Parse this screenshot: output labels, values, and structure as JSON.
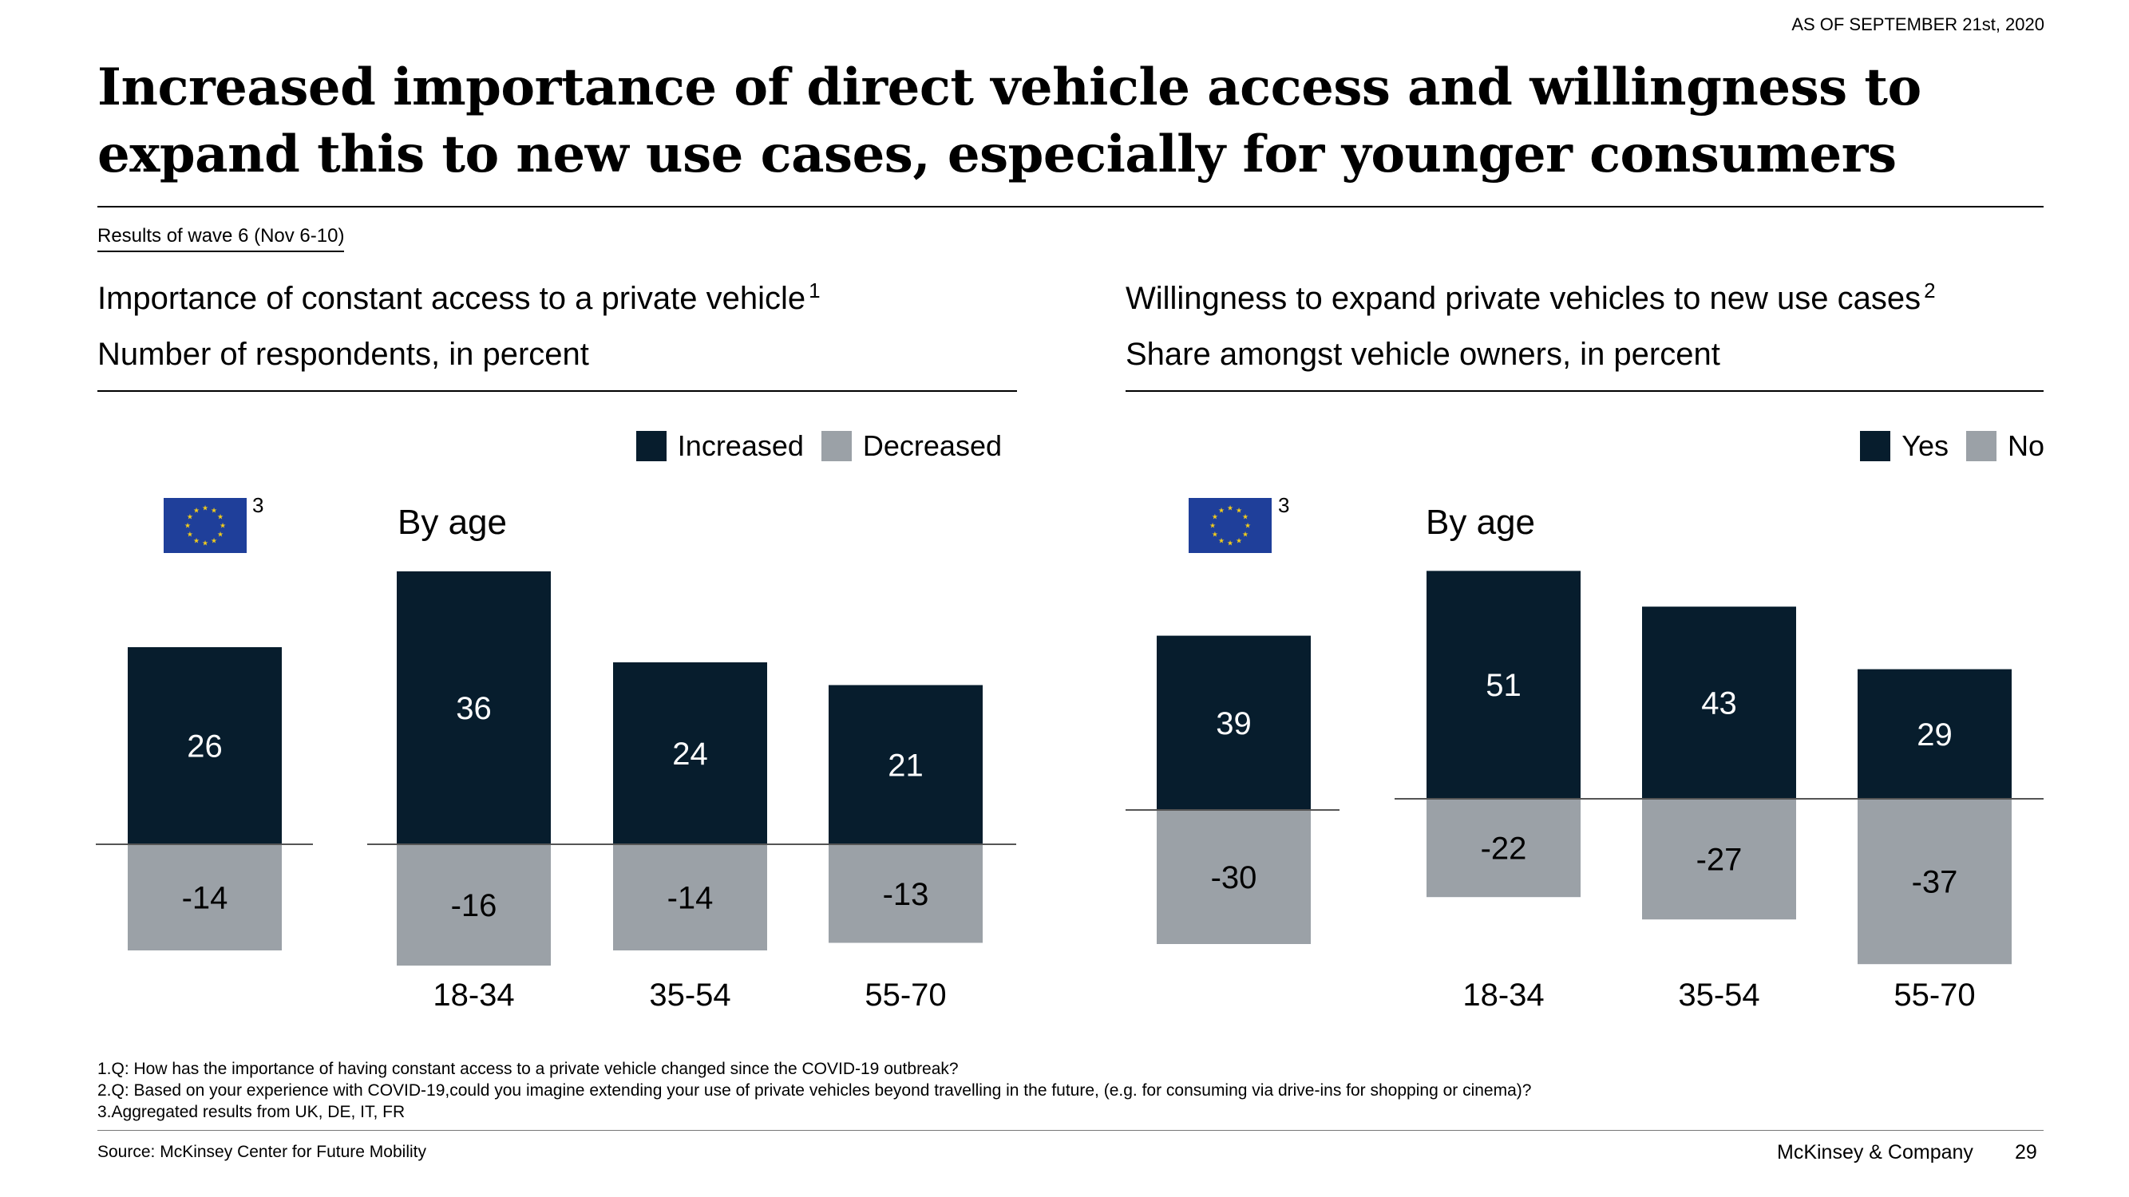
{
  "header": {
    "date_stamp": "AS OF SEPTEMBER 21st, 2020",
    "title_line1": "Increased importance of direct vehicle access and willingness to",
    "title_line2": "expand this to new use cases, especially for younger consumers",
    "wave": "Results of wave 6 (Nov 6-10)"
  },
  "colors": {
    "positive": "#071d2d",
    "negative": "#9ba1a7",
    "flag_blue": "#1f3f9a",
    "flag_star": "#f2cc1b"
  },
  "icons": {
    "flag": "eu-flag-icon"
  },
  "chart_data": [
    {
      "type": "bar",
      "stacking": "diverging",
      "title": "Importance of constant access to a private vehicle",
      "title_footnote": "1",
      "subtitle": "Number of respondents, in percent",
      "legend_position": "top-right",
      "group_label": "By age",
      "aggregate_footnote": "3",
      "categories": [
        "EU",
        "18-34",
        "35-54",
        "55-70"
      ],
      "category_labels": [
        "",
        "18-34",
        "35-54",
        "55-70"
      ],
      "series": [
        {
          "name": "Increased",
          "values": [
            26,
            36,
            24,
            21
          ]
        },
        {
          "name": "Decreased",
          "values": [
            -14,
            -16,
            -14,
            -13
          ]
        }
      ]
    },
    {
      "type": "bar",
      "stacking": "diverging",
      "title": "Willingness to expand private vehicles to new use cases",
      "title_footnote": "2",
      "subtitle": "Share amongst vehicle owners, in percent",
      "legend_position": "top-right",
      "group_label": "By age",
      "aggregate_footnote": "3",
      "categories": [
        "EU",
        "18-34",
        "35-54",
        "55-70"
      ],
      "category_labels": [
        "",
        "18-34",
        "35-54",
        "55-70"
      ],
      "series": [
        {
          "name": "Yes",
          "values": [
            39,
            51,
            43,
            29
          ]
        },
        {
          "name": "No",
          "values": [
            -30,
            -22,
            -27,
            -37
          ]
        }
      ]
    }
  ],
  "footnotes": [
    "1.Q: How has the importance of having constant access to a private vehicle changed since the COVID-19 outbreak?",
    "2.Q: Based on your experience with COVID-19,could you imagine extending your use of private vehicles beyond travelling in the future, (e.g. for consuming via drive-ins for shopping or cinema)?",
    "3.Aggregated results from UK, DE, IT, FR"
  ],
  "footer": {
    "source": "Source: McKinsey Center for Future Mobility",
    "brand": "McKinsey & Company",
    "page_number": "29"
  }
}
